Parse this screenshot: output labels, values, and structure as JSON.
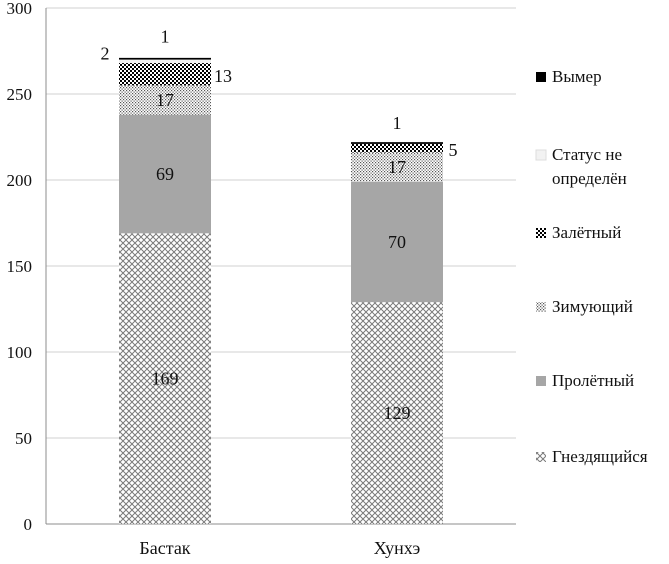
{
  "chart_data": {
    "type": "bar",
    "stacked": true,
    "categories": [
      "Бастак",
      "Хунхэ"
    ],
    "series": [
      {
        "name": "Гнездящийся",
        "values": [
          169,
          129
        ],
        "labels": [
          "169",
          "129"
        ],
        "pattern": "crosshatch"
      },
      {
        "name": "Пролётный",
        "values": [
          69,
          70
        ],
        "labels": [
          "69",
          "70"
        ],
        "pattern": "solid-gray",
        "color": "#a6a6a6"
      },
      {
        "name": "Зимующий",
        "values": [
          17,
          17
        ],
        "labels": [
          "17",
          "17"
        ],
        "pattern": "dots"
      },
      {
        "name": "Залётный",
        "values": [
          13,
          5
        ],
        "labels": [
          "13",
          "5"
        ],
        "pattern": "dense-check"
      },
      {
        "name": "Статус не определён",
        "values": [
          2,
          0
        ],
        "labels": [
          "2",
          ""
        ],
        "pattern": "light-gray",
        "color": "#f2f2f2"
      },
      {
        "name": "Вымер",
        "values": [
          1,
          1
        ],
        "labels": [
          "1",
          "1"
        ],
        "pattern": "solid-black",
        "color": "#000000"
      }
    ],
    "yticks": [
      "0",
      "50",
      "100",
      "150",
      "200",
      "250",
      "300"
    ],
    "ylim": [
      0,
      300
    ],
    "grid": true,
    "legend_position": "right",
    "title": "",
    "xlabel": "",
    "ylabel": ""
  }
}
